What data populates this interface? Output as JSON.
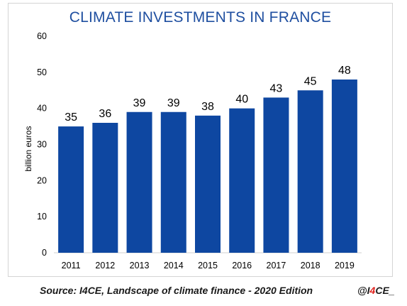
{
  "chart_data": {
    "type": "bar",
    "title": "CLIMATE INVESTMENTS IN FRANCE",
    "xlabel": "",
    "ylabel": "billion euros",
    "categories": [
      "2011",
      "2012",
      "2013",
      "2014",
      "2015",
      "2016",
      "2017",
      "2018",
      "2019"
    ],
    "values": [
      35,
      36,
      39,
      39,
      38,
      40,
      43,
      45,
      48
    ],
    "data_labels": [
      "35",
      "36",
      "39",
      "39",
      "38",
      "40",
      "43",
      "45",
      "48"
    ],
    "ylim": [
      0,
      60
    ],
    "yticks": [
      0,
      10,
      20,
      30,
      40,
      50,
      60
    ],
    "grid": false,
    "bar_color": "#0e47a1"
  },
  "footer": {
    "source": "Source: I4CE, Landscape of climate finance - 2020 Edition",
    "brand_prefix": "@I",
    "brand_accent": "4",
    "brand_suffix": "CE_",
    "brand_accent_color": "#e0201b"
  }
}
